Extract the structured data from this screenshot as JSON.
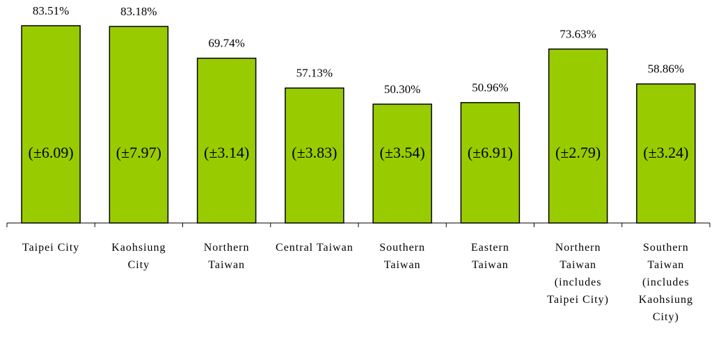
{
  "chart_data": {
    "type": "bar",
    "categories": [
      "Taipei City",
      "Kaohsiung City",
      "Northern Taiwan",
      "Central Taiwan",
      "Southern Taiwan",
      "Eastern Taiwan",
      "Northern Taiwan (includes Taipei City)",
      "Southern Taiwan (includes Kaohsiung City)"
    ],
    "values": [
      83.51,
      83.18,
      69.74,
      57.13,
      50.3,
      50.96,
      73.63,
      58.86
    ],
    "value_labels": [
      "83.51%",
      "83.18%",
      "69.74%",
      "57.13%",
      "50.30%",
      "50.96%",
      "73.63%",
      "58.86%"
    ],
    "error_labels": [
      "(±6.09)",
      "(±7.97)",
      "(±3.14)",
      "(±3.83)",
      "(±3.54)",
      "(±6.91)",
      "(±2.79)",
      "(±3.24)"
    ],
    "color": "#99cc00"
  }
}
